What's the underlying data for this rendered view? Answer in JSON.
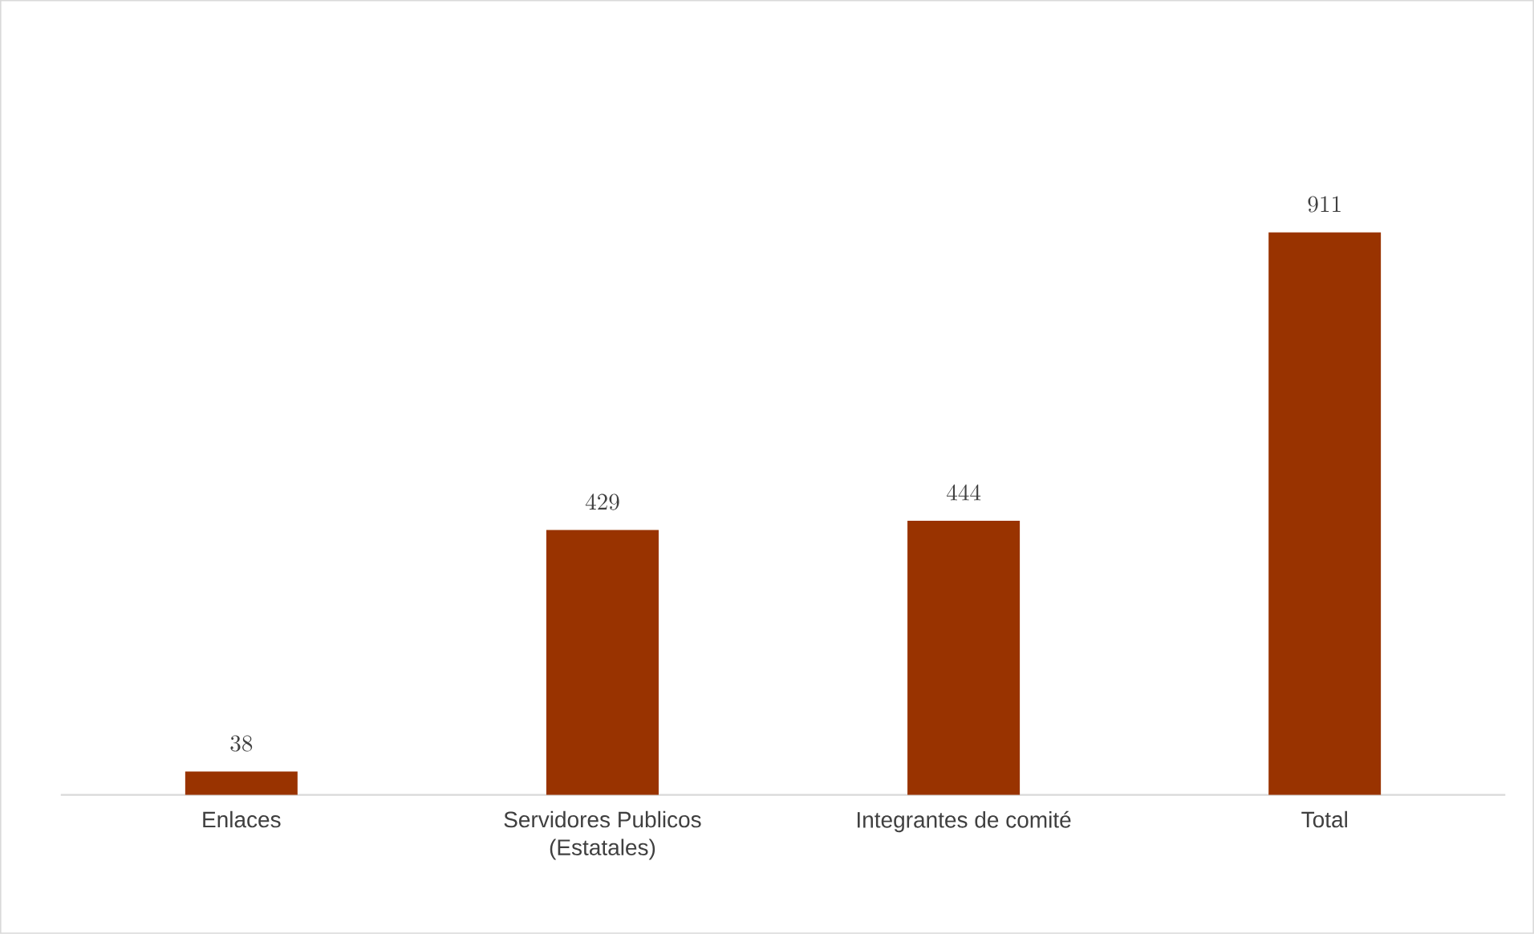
{
  "chart_data": {
    "type": "bar",
    "categories": [
      "Enlaces",
      "Servidores Publicos (Estatales)",
      "Integrantes de comité",
      "Total"
    ],
    "values": [
      38,
      429,
      444,
      911
    ],
    "color": "#993300",
    "data_labels": true
  }
}
